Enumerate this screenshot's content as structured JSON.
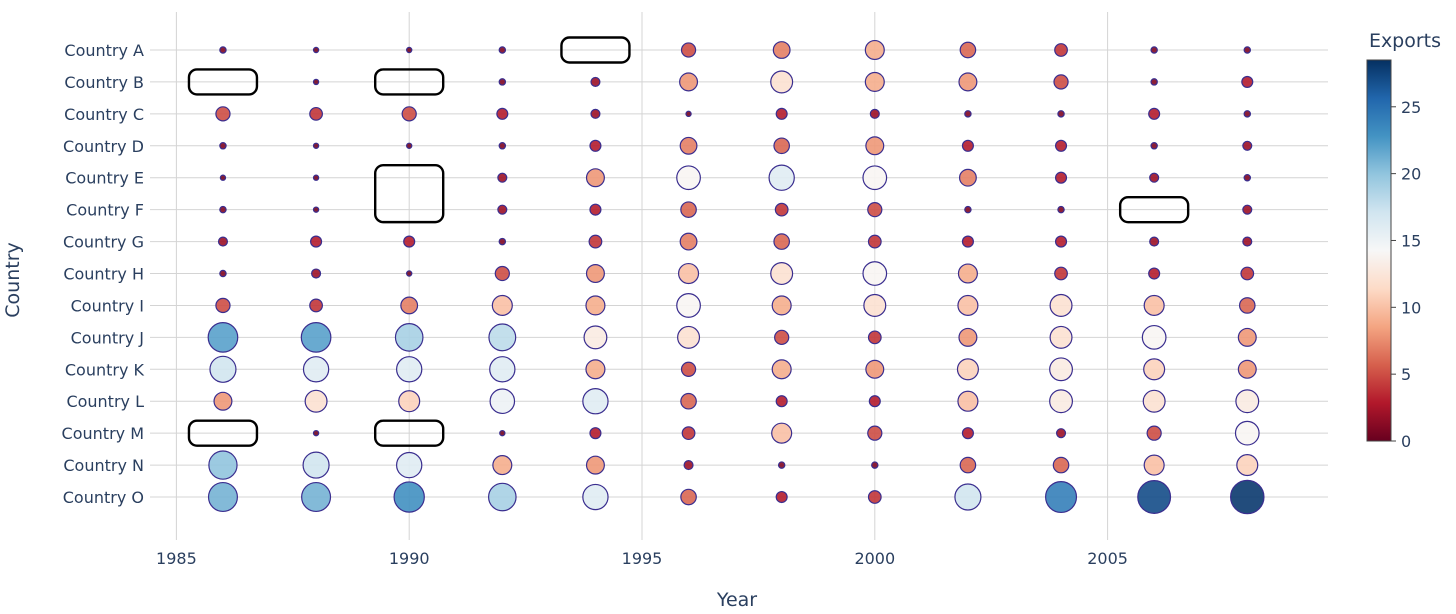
{
  "chart_data": {
    "type": "scatter",
    "title": "",
    "xlabel": "Year",
    "ylabel": "Country",
    "xlim": [
      1984.9,
      2009.8
    ],
    "x_ticks": [
      1985,
      1990,
      1995,
      2000,
      2005
    ],
    "years": [
      1986,
      1988,
      1990,
      1992,
      1994,
      1996,
      1998,
      2000,
      2002,
      2004,
      2006,
      2008
    ],
    "countries": [
      "Country A",
      "Country B",
      "Country C",
      "Country D",
      "Country E",
      "Country F",
      "Country G",
      "Country H",
      "Country I",
      "Country J",
      "Country K",
      "Country L",
      "Country M",
      "Country N",
      "Country O"
    ],
    "size_and_color_by": "Exports",
    "grid": true,
    "colorbar": {
      "title": "Exports",
      "colorscale": "RdBu",
      "range": [
        0,
        28.5
      ],
      "ticks": [
        0,
        5,
        10,
        15,
        20,
        25
      ]
    },
    "series": [
      {
        "country": "Country A",
        "values": [
          1,
          0.5,
          0.5,
          1,
          null,
          5,
          7,
          9,
          6,
          4,
          1,
          1
        ]
      },
      {
        "country": "Country B",
        "values": [
          null,
          0.5,
          null,
          1,
          2,
          8,
          12,
          9,
          8,
          5,
          1,
          3
        ]
      },
      {
        "country": "Country C",
        "values": [
          5,
          4,
          5,
          3,
          2,
          0.5,
          3,
          2,
          1,
          1,
          3,
          1
        ]
      },
      {
        "country": "Country D",
        "values": [
          1,
          0.5,
          0.5,
          1,
          3,
          7,
          6,
          8,
          3,
          3,
          1,
          2
        ]
      },
      {
        "country": "Country E",
        "values": [
          0.5,
          0.5,
          null,
          2,
          8,
          14,
          16,
          14,
          7,
          3,
          2,
          1
        ]
      },
      {
        "country": "Country F",
        "values": [
          1,
          0.5,
          null,
          2,
          3,
          6,
          4,
          5,
          1,
          1,
          null,
          2
        ]
      },
      {
        "country": "Country G",
        "values": [
          2,
          3,
          3,
          1,
          4,
          7,
          6,
          4,
          3,
          3,
          2,
          2
        ]
      },
      {
        "country": "Country H",
        "values": [
          1,
          2,
          0.5,
          5,
          8,
          10,
          12,
          14,
          9,
          4,
          3,
          4
        ]
      },
      {
        "country": "Country I",
        "values": [
          5,
          4,
          7,
          10,
          9,
          14,
          9,
          12,
          10,
          12,
          10,
          6
        ]
      },
      {
        "country": "Country J",
        "values": [
          22,
          22,
          19,
          18,
          13,
          12,
          5,
          4,
          8,
          12,
          14,
          8
        ]
      },
      {
        "country": "Country K",
        "values": [
          17,
          16,
          16,
          16,
          9,
          5,
          9,
          8,
          11,
          13,
          11,
          8
        ]
      },
      {
        "country": "Country L",
        "values": [
          8,
          12,
          11,
          15,
          16,
          6,
          3,
          3,
          10,
          13,
          12,
          13
        ]
      },
      {
        "country": "Country M",
        "values": [
          null,
          0.5,
          null,
          0.5,
          3,
          4,
          10,
          5,
          3,
          2,
          5,
          14
        ]
      },
      {
        "country": "Country N",
        "values": [
          20,
          17,
          16,
          9,
          8,
          2,
          1,
          1,
          6,
          6,
          10,
          11
        ]
      },
      {
        "country": "Country O",
        "values": [
          21,
          21,
          23,
          19,
          16,
          6,
          3,
          4,
          17,
          24,
          27,
          28
        ]
      }
    ],
    "highlighted_empty_cells": [
      {
        "country": "Country A",
        "year": 1994
      },
      {
        "country": "Country B",
        "year": 1986
      },
      {
        "country": "Country B",
        "year": 1990
      },
      {
        "country": "Country E",
        "year": 1990
      },
      {
        "country": "Country F",
        "year": 1990
      },
      {
        "country": "Country F",
        "year": 2006
      },
      {
        "country": "Country M",
        "year": 1986
      },
      {
        "country": "Country M",
        "year": 1990
      }
    ]
  }
}
